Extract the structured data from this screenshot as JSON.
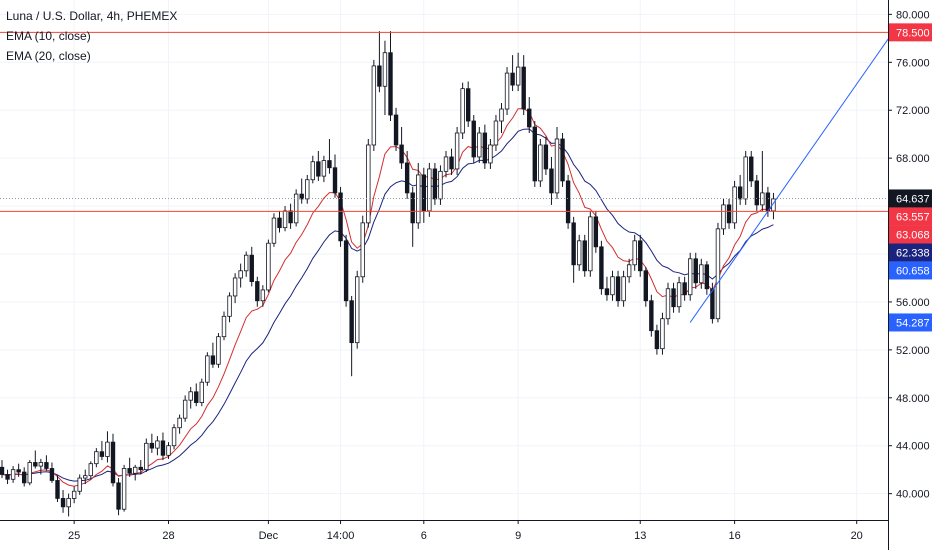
{
  "header": {
    "title": "Luna / U.S. Dollar, 4h, PHEMEX",
    "indicators": [
      "EMA (10, close)",
      "EMA (20, close)"
    ]
  },
  "colors": {
    "up_candle": "#ffffff",
    "down_candle": "#131722",
    "candle_outline": "#131722",
    "ema10": "#d32f2f",
    "ema20": "#1a237e",
    "hline": "#f44336",
    "trendline": "#2962ff",
    "tag_black": "#131722",
    "tag_red": "#f23645",
    "tag_navy": "#1a237e",
    "tag_blue": "#2962ff"
  },
  "chart_data": {
    "type": "candlestick",
    "y_axis": {
      "ticks": [
        40,
        44,
        48,
        52,
        56,
        60,
        64,
        68,
        72,
        76,
        80
      ],
      "tick_labels": [
        "40.000",
        "44.000",
        "48.000",
        "52.000",
        "56.000",
        "60.000",
        "64.000",
        "68.000",
        "72.000",
        "76.000",
        "80.000"
      ],
      "ylim": [
        37.8,
        81.2
      ]
    },
    "x_axis": {
      "tick_labels": [
        "25",
        "28",
        "Dec",
        "14:00",
        "6",
        "9",
        "13",
        "16",
        "20"
      ],
      "tick_index": [
        13,
        30,
        48,
        61,
        76,
        93,
        115,
        132,
        154
      ]
    },
    "price_tags": [
      {
        "label": "78.500",
        "value": 78.5,
        "style": "tag_red"
      },
      {
        "label": "64.637",
        "value": 64.637,
        "style": "tag_black"
      },
      {
        "label": "63.557",
        "value": 63.557,
        "style": "tag_red"
      },
      {
        "label": "63.068",
        "value": 63.068,
        "style": "tag_red"
      },
      {
        "label": "62.338",
        "value": 62.338,
        "style": "tag_navy"
      },
      {
        "label": "60.658",
        "value": 60.658,
        "style": "tag_blue"
      },
      {
        "label": "54.287",
        "value": 54.287,
        "style": "tag_blue"
      }
    ],
    "horizontal_lines": [
      78.5,
      63.557
    ],
    "last_price_line": 64.637,
    "trendline": {
      "from": {
        "index": 124,
        "price": 54.287
      },
      "to": {
        "index": 160.5,
        "price": 78.5
      }
    },
    "candles": [
      [
        42.2,
        42.8,
        41.3,
        41.6
      ],
      [
        41.6,
        42.0,
        40.8,
        41.2
      ],
      [
        41.2,
        42.3,
        40.9,
        42.0
      ],
      [
        42.0,
        42.5,
        41.4,
        41.8
      ],
      [
        41.8,
        42.2,
        40.6,
        40.9
      ],
      [
        40.9,
        42.8,
        40.7,
        42.6
      ],
      [
        42.6,
        43.6,
        42.1,
        42.3
      ],
      [
        42.3,
        42.9,
        41.6,
        42.6
      ],
      [
        42.6,
        43.2,
        41.9,
        42.1
      ],
      [
        42.1,
        42.6,
        40.9,
        41.1
      ],
      [
        41.1,
        41.5,
        39.3,
        39.6
      ],
      [
        39.6,
        40.3,
        38.4,
        38.9
      ],
      [
        38.9,
        40.0,
        38.1,
        39.6
      ],
      [
        39.6,
        40.6,
        39.2,
        40.2
      ],
      [
        40.2,
        41.6,
        39.9,
        41.3
      ],
      [
        41.3,
        42.0,
        40.8,
        41.5
      ],
      [
        41.5,
        42.7,
        41.2,
        42.5
      ],
      [
        42.5,
        43.8,
        42.2,
        43.5
      ],
      [
        43.5,
        44.4,
        42.8,
        43.1
      ],
      [
        43.1,
        45.2,
        42.6,
        44.3
      ],
      [
        44.3,
        45.0,
        40.6,
        40.9
      ],
      [
        40.9,
        41.3,
        38.2,
        38.7
      ],
      [
        38.7,
        42.4,
        38.5,
        42.1
      ],
      [
        42.1,
        43.0,
        41.4,
        41.7
      ],
      [
        41.7,
        42.4,
        41.1,
        42.2
      ],
      [
        42.2,
        42.8,
        41.6,
        42.0
      ],
      [
        42.0,
        44.6,
        41.8,
        44.2
      ],
      [
        44.2,
        45.0,
        43.4,
        43.8
      ],
      [
        43.8,
        44.8,
        43.2,
        44.4
      ],
      [
        44.4,
        45.1,
        42.8,
        43.2
      ],
      [
        43.2,
        44.3,
        42.9,
        44.0
      ],
      [
        44.0,
        45.8,
        43.7,
        45.5
      ],
      [
        45.5,
        46.6,
        45.0,
        46.3
      ],
      [
        46.3,
        48.2,
        46.0,
        47.8
      ],
      [
        47.8,
        48.9,
        47.1,
        48.5
      ],
      [
        48.5,
        49.2,
        47.3,
        47.6
      ],
      [
        47.6,
        49.6,
        47.3,
        49.3
      ],
      [
        49.3,
        51.8,
        49.0,
        51.5
      ],
      [
        51.5,
        52.6,
        50.5,
        50.8
      ],
      [
        50.8,
        53.4,
        50.5,
        53.1
      ],
      [
        53.1,
        55.2,
        52.8,
        54.8
      ],
      [
        54.8,
        56.8,
        54.3,
        56.5
      ],
      [
        56.5,
        58.4,
        55.9,
        58.0
      ],
      [
        58.0,
        59.2,
        57.2,
        58.6
      ],
      [
        58.6,
        60.2,
        58.1,
        59.9
      ],
      [
        59.9,
        60.6,
        57.3,
        57.7
      ],
      [
        57.7,
        58.1,
        55.6,
        56.1
      ],
      [
        56.1,
        57.4,
        55.6,
        57.0
      ],
      [
        57.0,
        61.2,
        56.8,
        60.9
      ],
      [
        60.9,
        63.4,
        60.6,
        63.0
      ],
      [
        63.0,
        63.6,
        61.8,
        62.2
      ],
      [
        62.2,
        64.0,
        61.9,
        63.6
      ],
      [
        63.6,
        64.2,
        62.1,
        62.6
      ],
      [
        62.6,
        65.4,
        62.3,
        65.0
      ],
      [
        65.0,
        66.3,
        64.2,
        64.6
      ],
      [
        64.6,
        66.6,
        64.2,
        66.2
      ],
      [
        66.2,
        68.2,
        65.9,
        67.7
      ],
      [
        67.7,
        68.6,
        66.1,
        66.5
      ],
      [
        66.5,
        68.2,
        66.0,
        67.8
      ],
      [
        67.8,
        69.6,
        66.7,
        67.2
      ],
      [
        67.2,
        68.3,
        64.7,
        65.1
      ],
      [
        65.1,
        65.6,
        60.6,
        61.1
      ],
      [
        61.1,
        61.6,
        55.6,
        56.1
      ],
      [
        56.1,
        56.5,
        49.8,
        52.6
      ],
      [
        52.6,
        58.6,
        52.1,
        58.1
      ],
      [
        58.1,
        63.2,
        57.6,
        62.6
      ],
      [
        62.6,
        69.6,
        62.2,
        69.1
      ],
      [
        69.1,
        76.2,
        68.6,
        75.7
      ],
      [
        75.7,
        78.6,
        73.5,
        74.0
      ],
      [
        74.0,
        77.8,
        71.6,
        76.8
      ],
      [
        76.8,
        78.6,
        71.1,
        71.6
      ],
      [
        71.6,
        72.2,
        68.6,
        69.1
      ],
      [
        69.1,
        70.6,
        67.1,
        67.6
      ],
      [
        67.6,
        68.6,
        64.6,
        65.1
      ],
      [
        65.1,
        65.6,
        60.6,
        62.6
      ],
      [
        62.6,
        67.6,
        62.1,
        66.6
      ],
      [
        66.6,
        67.2,
        62.6,
        63.6
      ],
      [
        63.6,
        67.6,
        63.1,
        67.1
      ],
      [
        67.1,
        67.6,
        64.1,
        64.6
      ],
      [
        64.6,
        67.4,
        64.1,
        66.9
      ],
      [
        66.9,
        68.6,
        66.4,
        68.1
      ],
      [
        68.1,
        68.8,
        66.6,
        67.1
      ],
      [
        67.1,
        70.6,
        66.6,
        70.1
      ],
      [
        70.1,
        74.3,
        69.6,
        73.8
      ],
      [
        73.8,
        74.4,
        70.6,
        71.1
      ],
      [
        71.1,
        71.6,
        67.6,
        68.1
      ],
      [
        68.1,
        70.6,
        67.6,
        70.1
      ],
      [
        70.1,
        70.8,
        67.1,
        67.6
      ],
      [
        67.6,
        69.6,
        67.1,
        69.1
      ],
      [
        69.1,
        71.6,
        68.6,
        71.1
      ],
      [
        71.1,
        72.6,
        70.1,
        72.1
      ],
      [
        72.1,
        75.6,
        71.6,
        75.1
      ],
      [
        75.1,
        76.6,
        73.6,
        74.1
      ],
      [
        74.1,
        76.8,
        73.6,
        75.6
      ],
      [
        75.6,
        76.6,
        71.6,
        72.1
      ],
      [
        72.1,
        73.1,
        70.1,
        70.6
      ],
      [
        70.6,
        71.1,
        65.6,
        66.1
      ],
      [
        66.1,
        69.6,
        65.6,
        69.1
      ],
      [
        69.1,
        69.8,
        66.6,
        67.1
      ],
      [
        67.1,
        68.1,
        64.1,
        65.1
      ],
      [
        65.1,
        70.6,
        64.6,
        69.6
      ],
      [
        69.6,
        70.1,
        65.6,
        66.1
      ],
      [
        66.1,
        66.6,
        62.1,
        62.6
      ],
      [
        62.6,
        63.1,
        57.6,
        59.1
      ],
      [
        59.1,
        61.6,
        58.6,
        61.1
      ],
      [
        61.1,
        61.6,
        58.1,
        58.6
      ],
      [
        58.6,
        63.6,
        58.1,
        63.1
      ],
      [
        63.1,
        63.6,
        60.1,
        60.6
      ],
      [
        60.6,
        61.1,
        56.6,
        57.1
      ],
      [
        57.1,
        58.1,
        56.1,
        56.6
      ],
      [
        56.6,
        58.6,
        56.1,
        58.1
      ],
      [
        58.1,
        58.6,
        55.6,
        56.1
      ],
      [
        56.1,
        58.6,
        55.6,
        58.1
      ],
      [
        58.1,
        59.6,
        57.6,
        59.1
      ],
      [
        59.1,
        61.6,
        58.6,
        61.1
      ],
      [
        61.1,
        61.6,
        58.1,
        58.6
      ],
      [
        58.6,
        58.9,
        55.6,
        56.1
      ],
      [
        56.1,
        56.6,
        53.1,
        53.6
      ],
      [
        53.6,
        54.1,
        51.6,
        52.1
      ],
      [
        52.1,
        55.1,
        51.6,
        54.6
      ],
      [
        54.6,
        57.6,
        54.1,
        57.1
      ],
      [
        57.1,
        57.6,
        55.1,
        55.6
      ],
      [
        55.6,
        58.1,
        55.1,
        57.6
      ],
      [
        57.6,
        58.1,
        56.1,
        56.6
      ],
      [
        56.6,
        60.1,
        56.1,
        59.6
      ],
      [
        59.6,
        60.1,
        57.1,
        57.6
      ],
      [
        57.6,
        59.6,
        57.1,
        59.1
      ],
      [
        59.1,
        59.4,
        56.6,
        57.1
      ],
      [
        57.1,
        57.6,
        54.2,
        54.6
      ],
      [
        54.6,
        62.6,
        54.3,
        62.1
      ],
      [
        62.1,
        64.6,
        61.6,
        64.1
      ],
      [
        64.1,
        64.6,
        62.1,
        62.6
      ],
      [
        62.6,
        66.1,
        62.1,
        65.6
      ],
      [
        65.6,
        66.6,
        64.1,
        64.6
      ],
      [
        64.6,
        68.6,
        64.1,
        68.1
      ],
      [
        68.1,
        68.6,
        65.6,
        66.1
      ],
      [
        66.1,
        66.6,
        63.6,
        64.1
      ],
      [
        64.1,
        68.6,
        63.6,
        65.1
      ],
      [
        65.1,
        65.6,
        63.1,
        63.6
      ],
      [
        63.6,
        65.1,
        62.9,
        64.6
      ]
    ]
  }
}
